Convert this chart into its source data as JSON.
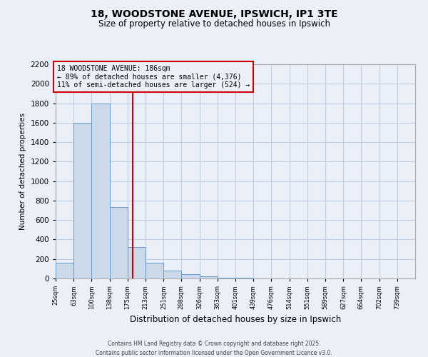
{
  "title": "18, WOODSTONE AVENUE, IPSWICH, IP1 3TE",
  "subtitle": "Size of property relative to detached houses in Ipswich",
  "xlabel": "Distribution of detached houses by size in Ipswich",
  "ylabel": "Number of detached properties",
  "bar_edges": [
    25,
    63,
    100,
    138,
    175,
    213,
    251,
    288,
    326,
    363,
    401,
    439,
    476,
    514,
    551,
    589,
    627,
    664,
    702,
    739,
    777
  ],
  "bar_heights": [
    160,
    1600,
    1800,
    730,
    325,
    160,
    80,
    45,
    20,
    10,
    10,
    0,
    0,
    0,
    0,
    0,
    0,
    0,
    0,
    0
  ],
  "bar_color": "#ccd9ea",
  "bar_edge_color": "#6699cc",
  "vline_x": 186,
  "vline_color": "#cc0000",
  "annotation_text": "18 WOODSTONE AVENUE: 186sqm\n← 89% of detached houses are smaller (4,376)\n11% of semi-detached houses are larger (524) →",
  "annotation_box_color": "#cc0000",
  "ylim": [
    0,
    2200
  ],
  "yticks": [
    0,
    200,
    400,
    600,
    800,
    1000,
    1200,
    1400,
    1600,
    1800,
    2000,
    2200
  ],
  "grid_color": "#c0cce0",
  "background_color": "#eaeff8",
  "footer_line1": "Contains HM Land Registry data © Crown copyright and database right 2025.",
  "footer_line2": "Contains public sector information licensed under the Open Government Licence v3.0."
}
